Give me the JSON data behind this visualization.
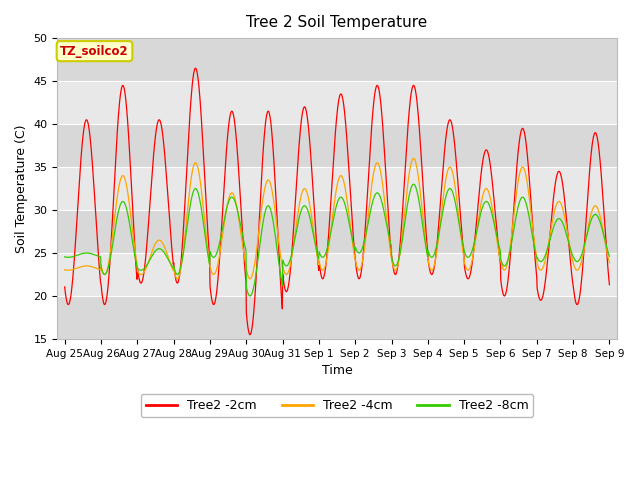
{
  "title": "Tree 2 Soil Temperature",
  "xlabel": "Time",
  "ylabel": "Soil Temperature (C)",
  "ylim": [
    15,
    50
  ],
  "annotation_text": "TZ_soilco2",
  "annotation_bg": "#ffffcc",
  "annotation_border": "#cccc00",
  "annotation_text_color": "#cc0000",
  "plot_bg_light": "#e8e8e8",
  "plot_bg_dark": "#d8d8d8",
  "figure_bg": "#ffffff",
  "x_tick_labels": [
    "Aug 25",
    "Aug 26",
    "Aug 27",
    "Aug 28",
    "Aug 29",
    "Aug 30",
    "Aug 31",
    "Sep 1",
    "Sep 2",
    "Sep 3",
    "Sep 4",
    "Sep 5",
    "Sep 6",
    "Sep 7",
    "Sep 8",
    "Sep 9"
  ],
  "line_colors": {
    "2cm": "#ff0000",
    "4cm": "#ffa500",
    "8cm": "#33cc00"
  },
  "legend_labels": [
    "Tree2 -2cm",
    "Tree2 -4cm",
    "Tree2 -8cm"
  ],
  "grid_color": "#ffffff",
  "n_days": 15,
  "points_per_day": 96,
  "peaks_2cm": [
    40.5,
    44.5,
    40.5,
    46.5,
    41.5,
    41.5,
    42.0,
    43.5,
    44.5,
    44.5,
    40.5,
    37.0,
    39.5,
    34.5,
    39.0
  ],
  "troughs_2cm": [
    19.0,
    19.0,
    21.5,
    21.5,
    19.0,
    15.5,
    20.5,
    22.0,
    22.0,
    22.5,
    22.5,
    22.0,
    20.0,
    19.5,
    19.0
  ],
  "peaks_4cm": [
    23.5,
    34.0,
    26.5,
    35.5,
    32.0,
    33.5,
    32.5,
    34.0,
    35.5,
    36.0,
    35.0,
    32.5,
    35.0,
    31.0,
    30.5
  ],
  "troughs_4cm": [
    23.0,
    22.5,
    22.5,
    22.0,
    22.5,
    22.0,
    22.5,
    23.0,
    23.0,
    23.0,
    23.0,
    23.0,
    23.0,
    23.0,
    23.0
  ],
  "peaks_8cm": [
    25.0,
    31.0,
    25.5,
    32.5,
    31.5,
    30.5,
    30.5,
    31.5,
    32.0,
    33.0,
    32.5,
    31.0,
    31.5,
    29.0,
    29.5
  ],
  "troughs_8cm": [
    24.5,
    22.5,
    23.0,
    22.5,
    24.5,
    20.0,
    23.5,
    24.5,
    25.0,
    23.5,
    24.5,
    24.5,
    23.5,
    24.0,
    24.0
  ],
  "peak_phase": 0.58,
  "trough_phase": 0.1
}
